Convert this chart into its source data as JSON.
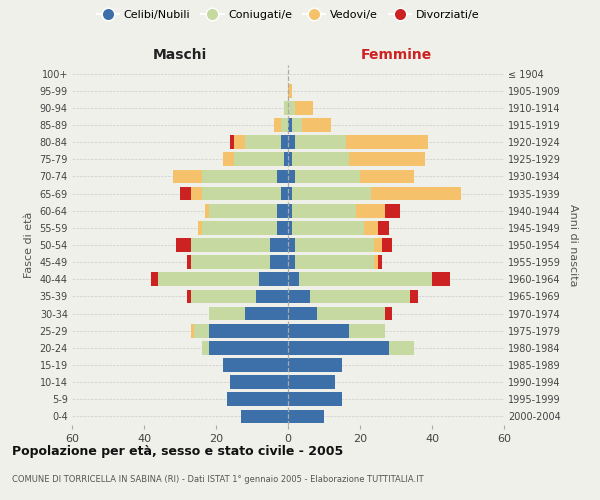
{
  "age_groups": [
    "0-4",
    "5-9",
    "10-14",
    "15-19",
    "20-24",
    "25-29",
    "30-34",
    "35-39",
    "40-44",
    "45-49",
    "50-54",
    "55-59",
    "60-64",
    "65-69",
    "70-74",
    "75-79",
    "80-84",
    "85-89",
    "90-94",
    "95-99",
    "100+"
  ],
  "birth_years": [
    "2000-2004",
    "1995-1999",
    "1990-1994",
    "1985-1989",
    "1980-1984",
    "1975-1979",
    "1970-1974",
    "1965-1969",
    "1960-1964",
    "1955-1959",
    "1950-1954",
    "1945-1949",
    "1940-1944",
    "1935-1939",
    "1930-1934",
    "1925-1929",
    "1920-1924",
    "1915-1919",
    "1910-1914",
    "1905-1909",
    "≤ 1904"
  ],
  "male_celibe": [
    13,
    17,
    16,
    18,
    22,
    22,
    12,
    9,
    8,
    5,
    5,
    3,
    3,
    2,
    3,
    1,
    2,
    0,
    0,
    0,
    0
  ],
  "male_coniugato": [
    0,
    0,
    0,
    0,
    2,
    4,
    10,
    18,
    28,
    22,
    22,
    21,
    19,
    22,
    21,
    14,
    10,
    2,
    1,
    0,
    0
  ],
  "male_vedovo": [
    0,
    0,
    0,
    0,
    0,
    1,
    0,
    0,
    0,
    0,
    0,
    1,
    1,
    3,
    8,
    3,
    3,
    2,
    0,
    0,
    0
  ],
  "male_divorziato": [
    0,
    0,
    0,
    0,
    0,
    0,
    0,
    1,
    2,
    1,
    4,
    0,
    0,
    3,
    0,
    0,
    1,
    0,
    0,
    0,
    0
  ],
  "female_celibe": [
    10,
    15,
    13,
    15,
    28,
    17,
    8,
    6,
    3,
    2,
    2,
    1,
    1,
    1,
    2,
    1,
    2,
    1,
    0,
    0,
    0
  ],
  "female_coniugato": [
    0,
    0,
    0,
    0,
    7,
    10,
    19,
    28,
    37,
    22,
    22,
    20,
    18,
    22,
    18,
    16,
    14,
    3,
    2,
    0,
    0
  ],
  "female_vedovo": [
    0,
    0,
    0,
    0,
    0,
    0,
    0,
    0,
    0,
    1,
    2,
    4,
    8,
    25,
    15,
    21,
    23,
    8,
    5,
    1,
    0
  ],
  "female_divorziato": [
    0,
    0,
    0,
    0,
    0,
    0,
    2,
    2,
    5,
    1,
    3,
    3,
    4,
    0,
    0,
    0,
    0,
    0,
    0,
    0,
    0
  ],
  "colors": {
    "celibe": "#3d6fa8",
    "coniugato": "#c5d9a0",
    "vedovo": "#f5c26b",
    "divorziato": "#cc2222"
  },
  "bg_color": "#f0f0eb",
  "title": "Popolazione per età, sesso e stato civile - 2005",
  "subtitle": "COMUNE DI TORRICELLA IN SABINA (RI) - Dati ISTAT 1° gennaio 2005 - Elaborazione TUTTITALIA.IT",
  "xlabel_left": "Maschi",
  "xlabel_right": "Femmine",
  "ylabel_left": "Fasce di età",
  "ylabel_right": "Anni di nascita",
  "xlim": 60
}
